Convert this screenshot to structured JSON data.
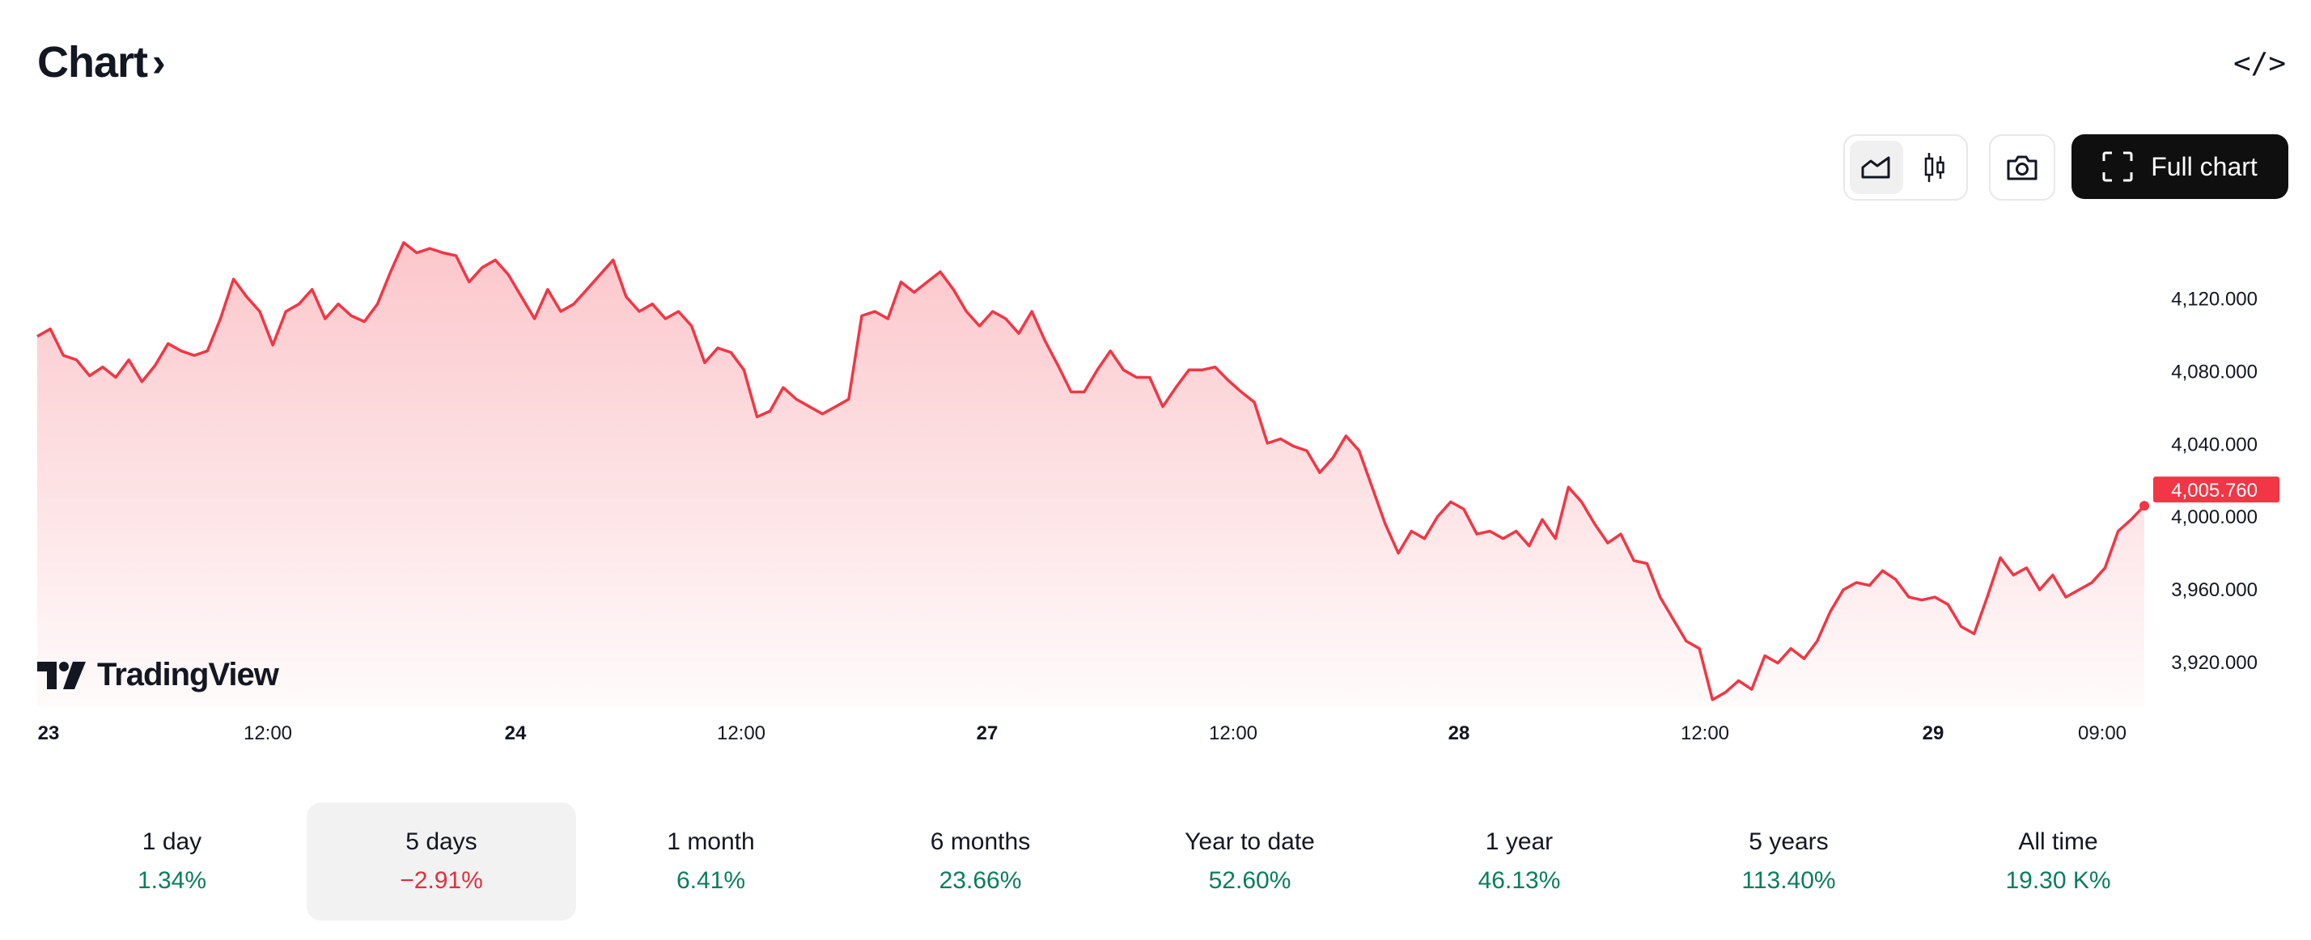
{
  "header": {
    "title": "Chart",
    "title_chevron": "›",
    "embed_icon": "</>"
  },
  "toolbar": {
    "line_icon": "area-chart-icon",
    "candles_icon": "candlestick-icon",
    "snapshot_icon": "camera-icon",
    "full_chart_label": "Full chart"
  },
  "logo": {
    "text": "TradingView"
  },
  "colors": {
    "line": "#f23645",
    "up": "#0a7d5c",
    "down": "#e0303e"
  },
  "chart_data": {
    "type": "area",
    "ylim": [
      3895,
      4155
    ],
    "yticks": [
      "4,120.000",
      "4,080.000",
      "4,040.000",
      "4,000.000",
      "3,960.000",
      "3,920.000"
    ],
    "ytick_values": [
      4120,
      4080,
      4040,
      4000,
      3960,
      3920
    ],
    "xticks": [
      {
        "label": "23",
        "bold": true
      },
      {
        "label": "12:00",
        "bold": false
      },
      {
        "label": "24",
        "bold": true
      },
      {
        "label": "12:00",
        "bold": false
      },
      {
        "label": "27",
        "bold": true
      },
      {
        "label": "12:00",
        "bold": false
      },
      {
        "label": "28",
        "bold": true
      },
      {
        "label": "12:00",
        "bold": false
      },
      {
        "label": "29",
        "bold": true
      },
      {
        "label": "09:00",
        "bold": false
      }
    ],
    "last_price": "4,005.760",
    "values": [
      4099.0,
      4103.1,
      4088.5,
      4086.1,
      4077.3,
      4082.1,
      4076.4,
      4086.1,
      4074.0,
      4082.9,
      4095.0,
      4091.0,
      4088.5,
      4091.0,
      4108.7,
      4130.5,
      4120.8,
      4112.7,
      4094.2,
      4112.7,
      4116.8,
      4124.8,
      4108.7,
      4116.8,
      4110.3,
      4107.1,
      4116.8,
      4134.5,
      4150.6,
      4145.0,
      4147.4,
      4145.0,
      4143.4,
      4128.9,
      4136.9,
      4141.0,
      4132.9,
      4120.8,
      4108.7,
      4124.8,
      4112.7,
      4116.8,
      4124.8,
      4132.9,
      4141.0,
      4120.8,
      4112.7,
      4116.8,
      4108.7,
      4112.7,
      4104.7,
      4084.5,
      4092.6,
      4090.2,
      4080.5,
      4054.7,
      4057.9,
      4070.8,
      4064.4,
      4060.3,
      4056.3,
      4060.3,
      4064.4,
      4110.3,
      4112.7,
      4108.7,
      4128.9,
      4123.2,
      4128.9,
      4134.5,
      4124.8,
      4112.7,
      4104.7,
      4112.7,
      4108.7,
      4100.6,
      4112.7,
      4096.6,
      4082.9,
      4068.4,
      4068.4,
      4080.5,
      4091.0,
      4080.5,
      4076.4,
      4076.4,
      4060.3,
      4070.8,
      4080.5,
      4080.5,
      4082.1,
      4074.8,
      4068.4,
      4062.7,
      4040.2,
      4042.6,
      4038.5,
      4036.1,
      4024.0,
      4032.1,
      4044.2,
      4036.1,
      4016.0,
      3995.8,
      3979.7,
      3991.8,
      3987.7,
      3999.8,
      4007.9,
      4003.9,
      3990.2,
      3991.8,
      3987.7,
      3991.8,
      3983.7,
      3998.2,
      3987.7,
      4016.0,
      4007.9,
      3995.8,
      3985.3,
      3990.2,
      3975.6,
      3974.0,
      3955.5,
      3943.4,
      3931.3,
      3927.2,
      3899.0,
      3903.1,
      3909.5,
      3904.7,
      3923.2,
      3919.2,
      3927.2,
      3921.6,
      3931.3,
      3947.4,
      3959.5,
      3963.5,
      3961.9,
      3970.0,
      3965.2,
      3955.5,
      3953.9,
      3955.5,
      3951.4,
      3939.3,
      3935.3,
      3955.5,
      3977.2,
      3967.6,
      3971.6,
      3959.5,
      3967.6,
      3955.5,
      3959.5,
      3963.5,
      3971.6,
      3991.8,
      3998.2,
      4005.76
    ]
  },
  "ranges": [
    {
      "label": "1 day",
      "value": "1.34%",
      "dir": "up"
    },
    {
      "label": "5 days",
      "value": "−2.91%",
      "dir": "down",
      "selected": true
    },
    {
      "label": "1 month",
      "value": "6.41%",
      "dir": "up"
    },
    {
      "label": "6 months",
      "value": "23.66%",
      "dir": "up"
    },
    {
      "label": "Year to date",
      "value": "52.60%",
      "dir": "up"
    },
    {
      "label": "1 year",
      "value": "46.13%",
      "dir": "up"
    },
    {
      "label": "5 years",
      "value": "113.40%",
      "dir": "up"
    },
    {
      "label": "All time",
      "value": "19.30 K%",
      "dir": "up"
    }
  ]
}
